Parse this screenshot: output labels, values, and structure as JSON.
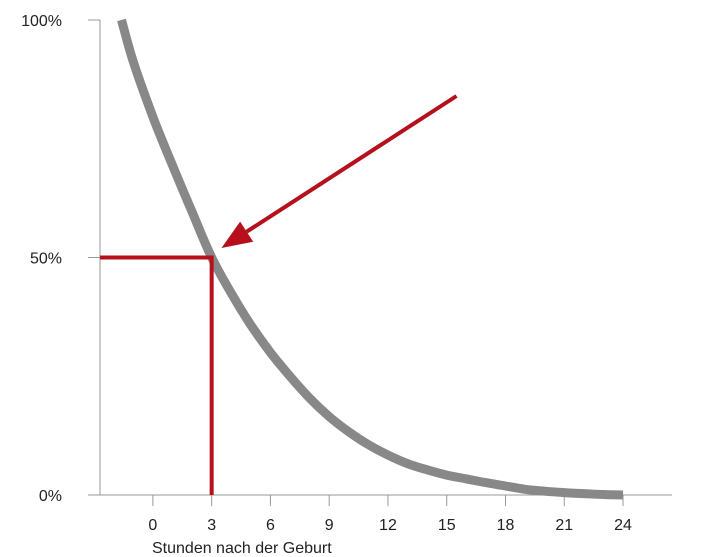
{
  "chart_data": {
    "type": "line",
    "title": "",
    "xlabel": "Stunden nach der Geburt",
    "ylabel": "",
    "x_ticks": [
      "0",
      "3",
      "6",
      "9",
      "12",
      "15",
      "18",
      "21",
      "24"
    ],
    "x_tick_values": [
      0,
      3,
      6,
      9,
      12,
      15,
      18,
      21,
      24
    ],
    "y_ticks": [
      "0%",
      "50%",
      "100%"
    ],
    "y_tick_values": [
      0,
      50,
      100
    ],
    "xlim": [
      -2.7,
      26.5
    ],
    "ylim": [
      0,
      100
    ],
    "grid": false,
    "series": [
      {
        "values_x": [
          -1.6,
          -1,
          0,
          1,
          2,
          3,
          4,
          5,
          6,
          7,
          8,
          9,
          10,
          11,
          12,
          13,
          14,
          15,
          16,
          17,
          18,
          19,
          20,
          21,
          22,
          23,
          24
        ],
        "values_y": [
          100,
          91.2,
          79.6,
          69.4,
          59.6,
          50.0,
          42.5,
          35.8,
          30.0,
          25.0,
          20.4,
          16.5,
          13.3,
          10.6,
          8.4,
          6.6,
          5.3,
          4.2,
          3.4,
          2.6,
          1.9,
          1.2,
          0.8,
          0.5,
          0.3,
          0.1,
          0
        ]
      }
    ],
    "annotations": {
      "halflife_point": {
        "x": 3,
        "y": 50
      },
      "arrow": {
        "from": {
          "x": 15.5,
          "y": 84
        },
        "to": {
          "x": 3.5,
          "y": 52
        }
      }
    },
    "colors": {
      "curve": "#888888",
      "highlight": "#b5101c",
      "axis": "#999999"
    }
  }
}
